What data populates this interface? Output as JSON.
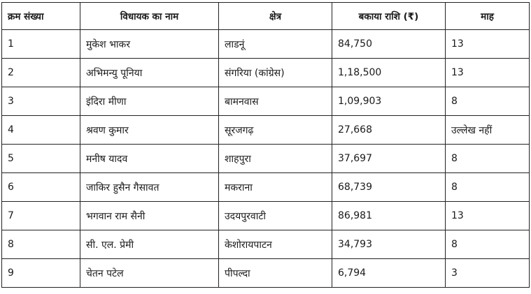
{
  "table": {
    "headers": [
      "क्रम संख्या",
      "विधायक का नाम",
      "क्षेत्र",
      "बकाया राशि (₹)",
      "माह"
    ],
    "rows": [
      [
        "1",
        "मुकेश भाकर",
        "लाडनूं",
        "84,750",
        "13"
      ],
      [
        "2",
        "अभिमन्यु पूनिया",
        "संगरिया (कांग्रेस)",
        "1,18,500",
        "13"
      ],
      [
        "3",
        "इंदिरा मीणा",
        "बामनवास",
        "1,09,903",
        "8"
      ],
      [
        "4",
        "श्रवण कुमार",
        "सूरजगढ़",
        "27,668",
        "उल्लेख नहीं"
      ],
      [
        "5",
        "मनीष यादव",
        "शाहपुरा",
        "37,697",
        "8"
      ],
      [
        "6",
        "जाकिर हुसैन गैसावत",
        "मकराना",
        "68,739",
        "8"
      ],
      [
        "7",
        "भगवान राम सैनी",
        "उदयपुरवाटी",
        "86,981",
        "13"
      ],
      [
        "8",
        "सी. एल. प्रेमी",
        "केशोरायपाटन",
        "34,793",
        "8"
      ],
      [
        "9",
        "चेतन पटेल",
        "पीपल्दा",
        "6,794",
        "3"
      ]
    ]
  }
}
